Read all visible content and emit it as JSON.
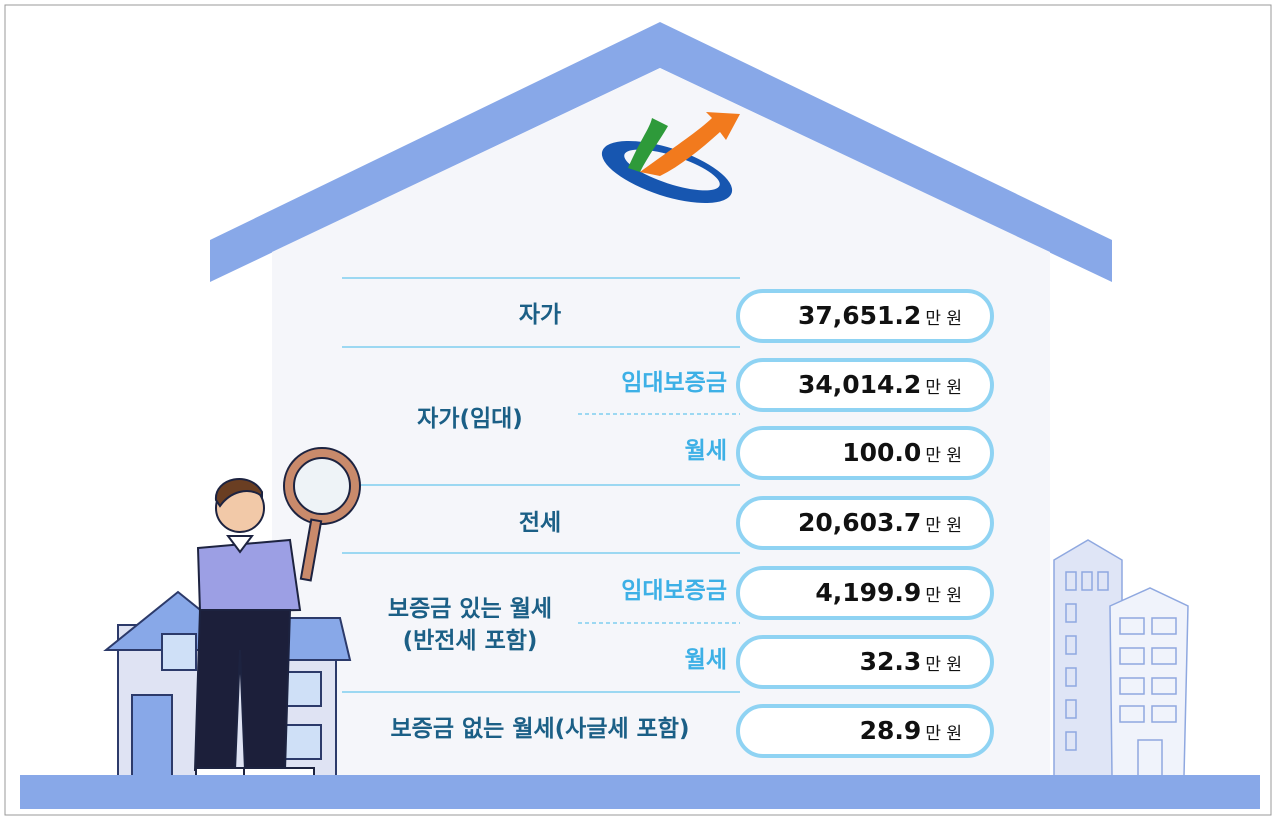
{
  "unit": "만 원",
  "rows": [
    {
      "label": "자가",
      "value": "37,651.2"
    },
    {
      "label": "자가(임대)",
      "items": [
        {
          "label": "임대보증금",
          "value": "34,014.2"
        },
        {
          "label": "월세",
          "value": "100.0"
        }
      ]
    },
    {
      "label": "전세",
      "value": "20,603.7"
    },
    {
      "label_lines": [
        "보증금 있는 월세",
        "(반전세 포함)"
      ],
      "items": [
        {
          "label": "임대보증금",
          "value": "4,199.9"
        },
        {
          "label": "월세",
          "value": "32.3"
        }
      ]
    },
    {
      "label": "보증금 없는 월세(사글세 포함)",
      "value": "28.9"
    }
  ]
}
